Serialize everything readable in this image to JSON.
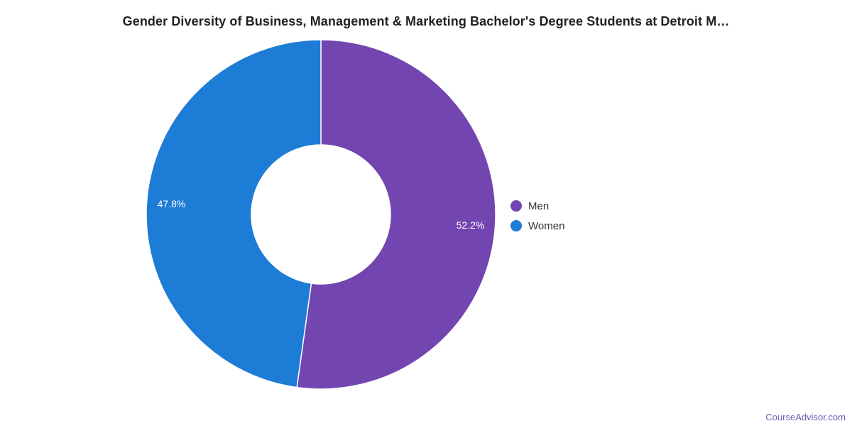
{
  "title": "Gender Diversity of Business, Management & Marketing Bachelor's Degree Students at Detroit M…",
  "watermark": "CourseAdvisor.com",
  "colors": {
    "men": "#7345b0",
    "women": "#1d7cd5",
    "title_text": "#212121",
    "legend_text": "#333333",
    "slice_label_text": "#ffffff",
    "watermark_text": "#6f5bb5",
    "background": "#ffffff"
  },
  "chart_data": {
    "type": "pie",
    "subtype": "donut",
    "title": "Gender Diversity of Business, Management & Marketing Bachelor's Degree Students at Detroit M…",
    "categories": [
      "Men",
      "Women"
    ],
    "values": [
      52.2,
      47.8
    ],
    "labels": [
      "52.2%",
      "47.8%"
    ],
    "colors": [
      "#7345b0",
      "#1d7cd5"
    ],
    "legend_position": "right",
    "labels_position": "inside",
    "start_angle_deg": 0,
    "direction": "clockwise",
    "inner_radius_ratio": 0.4
  }
}
